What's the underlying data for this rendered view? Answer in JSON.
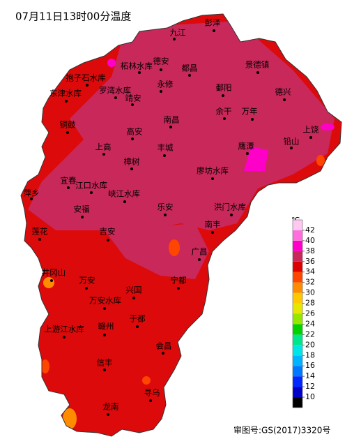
{
  "title": "07月11日13时00分温度",
  "places": [
    "九江",
    "彭泽",
    "柘林水库",
    "德安",
    "都昌",
    "景德镇",
    "抱子石水库",
    "永修",
    "鄱阳",
    "东津水库",
    "罗湾水库",
    "靖安",
    "德兴",
    "余干",
    "万年",
    "南昌",
    "铜鼓",
    "高安",
    "上饶",
    "铅山",
    "鹰潭",
    "上高",
    "丰城",
    "樟树",
    "廖坊水库",
    "宜春",
    "江口水库",
    "峡江水库",
    "萍乡",
    "安福",
    "乐安",
    "洪门水库",
    "南丰",
    "莲花",
    "吉安",
    "广昌",
    "井冈山",
    "万安",
    "宁都",
    "兴国",
    "万安水库",
    "于都",
    "上游江水库",
    "赣州",
    "会昌",
    "信丰",
    "寻乌",
    "龙南"
  ],
  "legend": {
    "unit": "℃",
    "ticks": [
      10,
      12,
      14,
      16,
      18,
      20,
      22,
      24,
      26,
      28,
      30,
      32,
      34,
      36,
      38,
      40,
      42
    ],
    "colors": [
      "#000000",
      "#0000c8",
      "#0028ff",
      "#0078ff",
      "#00b4ff",
      "#00e6e6",
      "#00e68c",
      "#00d200",
      "#96e600",
      "#e6e600",
      "#ffc800",
      "#ff8c00",
      "#ff4600",
      "#dc0000",
      "#c8285a",
      "#ff00c8",
      "#ff6edc",
      "#ffc8f0"
    ]
  },
  "footer": "审图号:GS(2017)3320号"
}
